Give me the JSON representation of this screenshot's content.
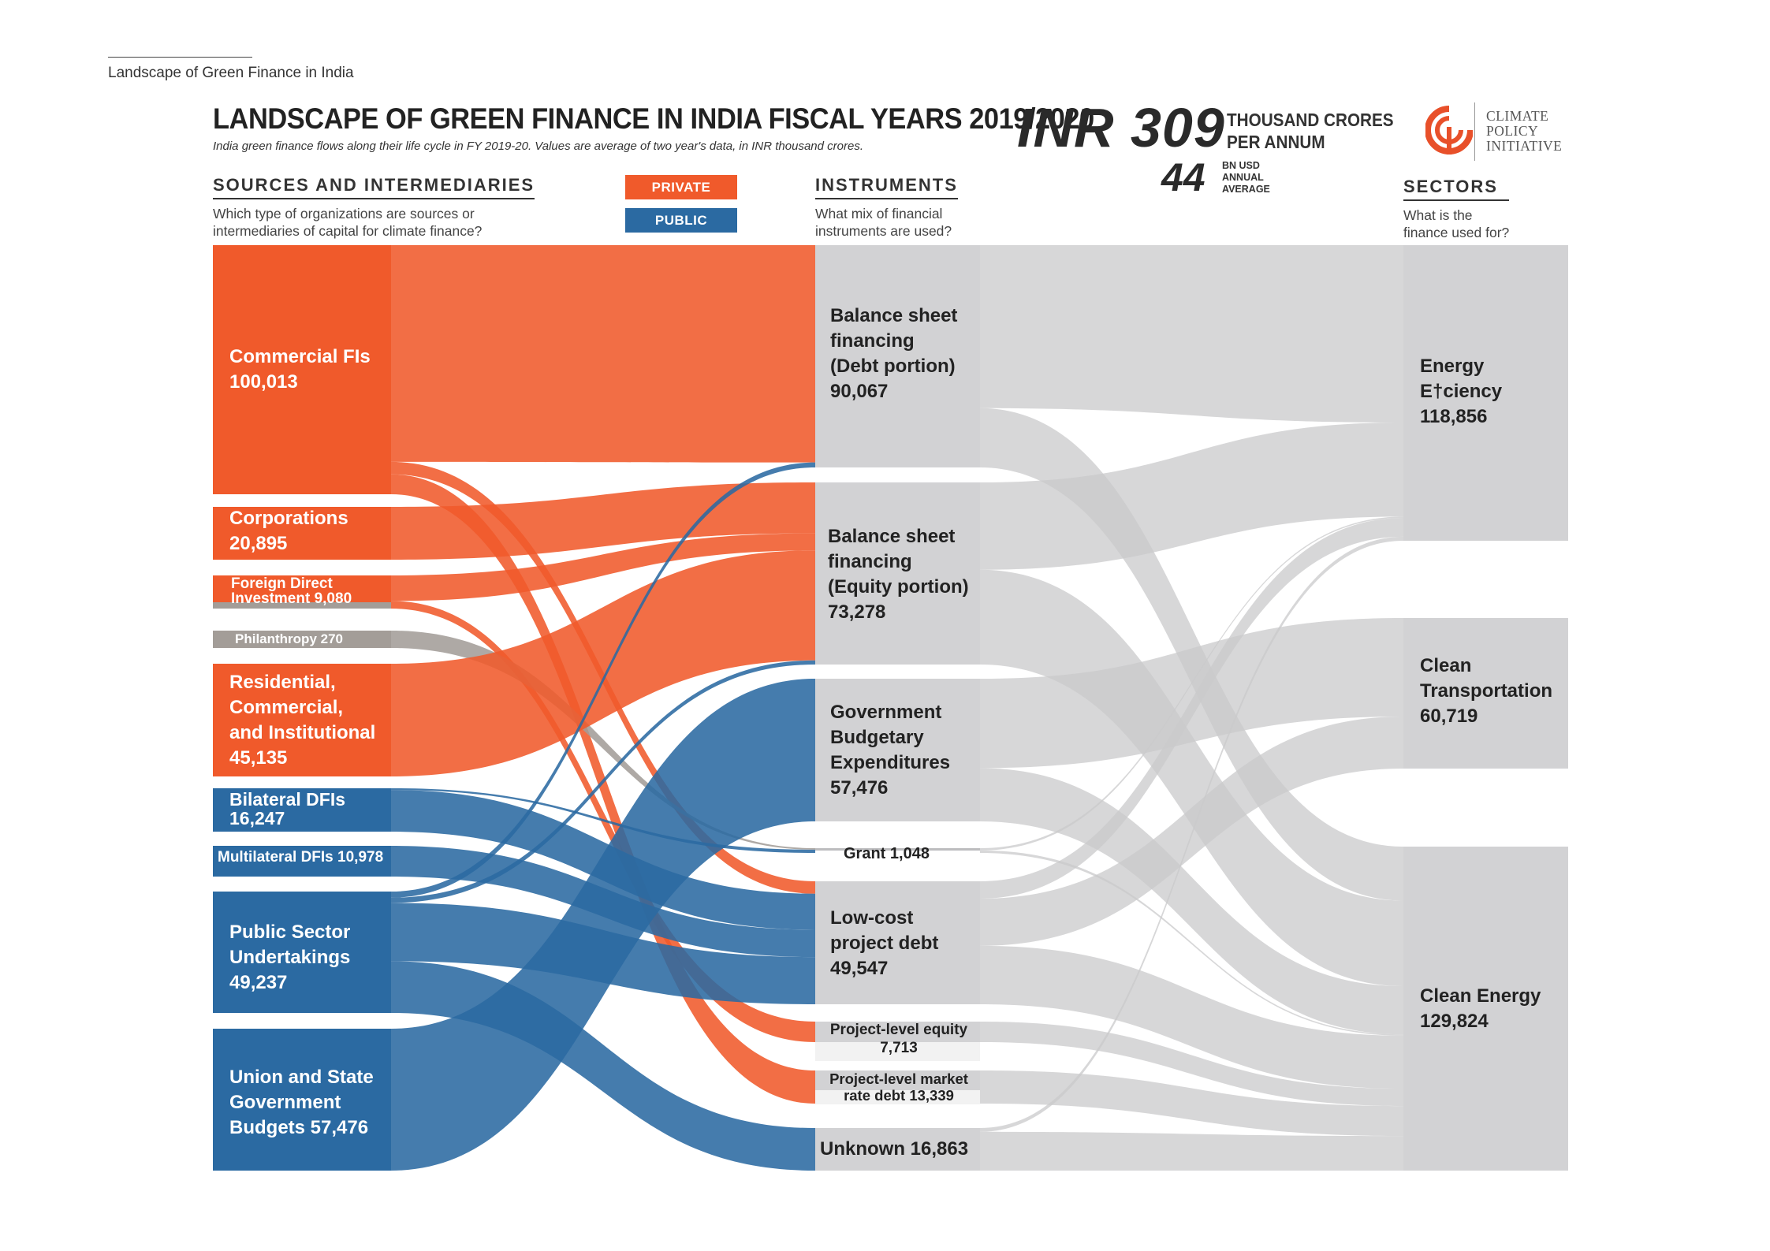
{
  "header": {
    "running_title": "Landscape of Green Finance in India",
    "title": "LANDSCAPE OF GREEN FINANCE IN INDIA FISCAL YEARS 2019/2020",
    "subtitle": "India green finance flows along their life cycle in FY 2019-20. Values are average of two year's data, in INR thousand crores.",
    "total_amount": "INR 309",
    "total_unit_line1": "THOUSAND CRORES",
    "total_unit_line2": "PER ANNUM",
    "usd_amount": "44",
    "usd_unit_line1": "BN USD",
    "usd_unit_line2": "ANNUAL",
    "usd_unit_line3": "AVERAGE"
  },
  "logo": {
    "line1": "CLIMATE",
    "line2": "POLICY",
    "line3": "INITIATIVE",
    "accent_color": "#e8502a"
  },
  "legend": {
    "private_label": "PRIVATE",
    "public_label": "PUBLIC",
    "private_color": "#f05a2b",
    "public_color": "#2b6aa2",
    "neutral_color": "#a39d98",
    "gray_node_color": "#d2d2d4"
  },
  "sections": {
    "sources_title": "SOURCES AND INTERMEDIARIES",
    "sources_q1": "Which type of organizations are sources or",
    "sources_q2": "intermediaries of capital for climate finance?",
    "instruments_title": "INSTRUMENTS",
    "instruments_q1": "What mix of financial",
    "instruments_q2": "instruments are used?",
    "sectors_title": "SECTORS",
    "sectors_q1": "What is the",
    "sectors_q2": "finance used for?"
  },
  "nodes": {
    "sources": [
      {
        "id": "commercial_fis",
        "lines": [
          "Commercial FIs",
          "100,013"
        ],
        "value": 100013,
        "category": "private"
      },
      {
        "id": "corporations",
        "lines": [
          "Corporations",
          "20,895"
        ],
        "value": 20895,
        "category": "private"
      },
      {
        "id": "fdi",
        "lines": [
          "Foreign Direct",
          "Investment 9,080"
        ],
        "value": 9080,
        "category": "private"
      },
      {
        "id": "philanthropy",
        "lines": [
          "Philanthropy 270"
        ],
        "value": 270,
        "category": "neutral"
      },
      {
        "id": "residential",
        "lines": [
          "Residential,",
          "Commercial,",
          "and Institutional",
          "45,135"
        ],
        "value": 45135,
        "category": "private"
      },
      {
        "id": "bilateral",
        "lines": [
          "Bilateral DFIs",
          "16,247"
        ],
        "value": 16247,
        "category": "public"
      },
      {
        "id": "multilateral",
        "lines": [
          "Multilateral DFIs 10,978"
        ],
        "value": 10978,
        "category": "public"
      },
      {
        "id": "psu",
        "lines": [
          "Public Sector",
          "Undertakings",
          "49,237"
        ],
        "value": 49237,
        "category": "public"
      },
      {
        "id": "budgets",
        "lines": [
          "Union and State",
          "Government",
          "Budgets 57,476"
        ],
        "value": 57476,
        "category": "public"
      }
    ],
    "instruments": [
      {
        "id": "bs_debt",
        "lines": [
          "Balance sheet",
          "financing",
          "(Debt portion)",
          "90,067"
        ],
        "value": 90067
      },
      {
        "id": "bs_equity",
        "lines": [
          "Balance sheet",
          "financing",
          "(Equity portion)",
          "73,278"
        ],
        "value": 73278
      },
      {
        "id": "gov_budget",
        "lines": [
          "Government",
          "Budgetary",
          "Expenditures",
          "57,476"
        ],
        "value": 57476
      },
      {
        "id": "grant",
        "lines": [
          "Grant 1,048"
        ],
        "value": 1048
      },
      {
        "id": "lowcost",
        "lines": [
          "Low-cost",
          "project debt",
          "49,547"
        ],
        "value": 49547
      },
      {
        "id": "proj_equity",
        "lines": [
          "Project-level equity",
          "7,713"
        ],
        "value": 7713
      },
      {
        "id": "proj_market",
        "lines": [
          "Project-level market",
          "rate debt 13,339"
        ],
        "value": 13339
      },
      {
        "id": "unknown",
        "lines": [
          "Unknown 16,863"
        ],
        "value": 16863
      }
    ],
    "sectors": [
      {
        "id": "energy_efficiency",
        "lines": [
          "Energy",
          "E†ciency",
          "118,856"
        ],
        "value": 118856
      },
      {
        "id": "clean_transport",
        "lines": [
          "Clean",
          "Transportation",
          "60,719"
        ],
        "value": 60719
      },
      {
        "id": "clean_energy",
        "lines": [
          "Clean Energy",
          "129,824"
        ],
        "value": 129824
      }
    ]
  },
  "flows_left": [
    {
      "from": "commercial_fis",
      "to": "bs_debt",
      "value": 87000,
      "category": "private"
    },
    {
      "from": "commercial_fis",
      "to": "proj_market",
      "value": 8000,
      "category": "private"
    },
    {
      "from": "commercial_fis",
      "to": "lowcost",
      "value": 5000,
      "category": "private"
    },
    {
      "from": "corporations",
      "to": "bs_equity",
      "value": 20895,
      "category": "private"
    },
    {
      "from": "fdi",
      "to": "bs_equity",
      "value": 7000,
      "category": "private"
    },
    {
      "from": "fdi",
      "to": "proj_equity",
      "value": 2080,
      "category": "private"
    },
    {
      "from": "philanthropy",
      "to": "grant",
      "value": 270,
      "category": "neutral"
    },
    {
      "from": "residential",
      "to": "bs_equity",
      "value": 45135,
      "category": "private"
    },
    {
      "from": "bilateral",
      "to": "lowcost",
      "value": 14500,
      "category": "public"
    },
    {
      "from": "bilateral",
      "to": "grant",
      "value": 600,
      "category": "public"
    },
    {
      "from": "multilateral",
      "to": "lowcost",
      "value": 10978,
      "category": "public"
    },
    {
      "from": "psu",
      "to": "bs_debt",
      "value": 2000,
      "category": "public"
    },
    {
      "from": "psu",
      "to": "bs_equity",
      "value": 1700,
      "category": "public"
    },
    {
      "from": "psu",
      "to": "lowcost",
      "value": 19000,
      "category": "public"
    },
    {
      "from": "psu",
      "to": "unknown",
      "value": 16863,
      "category": "public"
    },
    {
      "from": "budgets",
      "to": "gov_budget",
      "value": 57476,
      "category": "public"
    }
  ],
  "flows_right": [
    {
      "from": "bs_debt",
      "to": "energy_efficiency",
      "value": 66000
    },
    {
      "from": "bs_debt",
      "to": "clean_energy",
      "value": 24000
    },
    {
      "from": "bs_equity",
      "to": "energy_efficiency",
      "value": 35000
    },
    {
      "from": "bs_equity",
      "to": "clean_energy",
      "value": 38000
    },
    {
      "from": "gov_budget",
      "to": "clean_transport",
      "value": 36000
    },
    {
      "from": "gov_budget",
      "to": "clean_energy",
      "value": 21476
    },
    {
      "from": "grant",
      "to": "energy_efficiency",
      "value": 500
    },
    {
      "from": "grant",
      "to": "clean_energy",
      "value": 548
    },
    {
      "from": "lowcost",
      "to": "energy_efficiency",
      "value": 7000
    },
    {
      "from": "lowcost",
      "to": "clean_transport",
      "value": 19000
    },
    {
      "from": "lowcost",
      "to": "clean_energy",
      "value": 23547
    },
    {
      "from": "proj_equity",
      "to": "clean_energy",
      "value": 7713
    },
    {
      "from": "proj_market",
      "to": "clean_energy",
      "value": 13339
    },
    {
      "from": "unknown",
      "to": "energy_efficiency",
      "value": 1500
    },
    {
      "from": "unknown",
      "to": "clean_energy",
      "value": 15363
    }
  ]
}
